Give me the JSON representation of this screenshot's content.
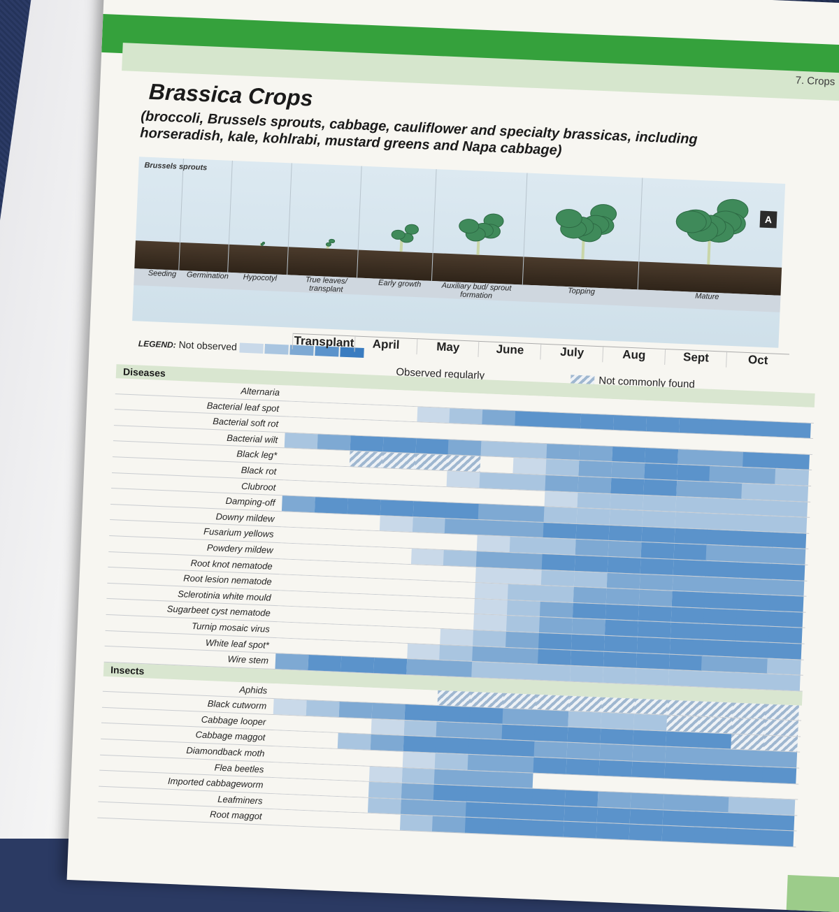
{
  "header": {
    "chapter": "7. Crops",
    "title": "Brassica Crops",
    "subtitle": "(broccoli, Brussels sprouts, cabbage, cauliflower and specialty brassicas, including horseradish, kale, kohlrabi, mustard greens and Napa cabbage)"
  },
  "illustration": {
    "label": "Brussels sprouts",
    "badge": "A",
    "stages": [
      "Seeding",
      "Germination",
      "Hypocotyl",
      "True leaves/ transplant",
      "Early growth",
      "Auxiliary bud/ sprout formation",
      "Topping",
      "Mature"
    ]
  },
  "legend": {
    "title": "LEGEND:",
    "not_observed": "Not observed",
    "observed_regularly": "Observed regularly",
    "not_commonly_found": "Not commonly found"
  },
  "months": [
    "Transplant",
    "April",
    "May",
    "June",
    "July",
    "Aug",
    "Sept",
    "Oct"
  ],
  "colors": {
    "l0": "#f7f6f1",
    "l1": "#c9d9e9",
    "l2": "#a9c5e0",
    "l3": "#7ea9d3",
    "l4": "#5b93cb",
    "l5": "#3a7cc0"
  },
  "sections": [
    {
      "name": "Diseases",
      "rows": [
        {
          "label": "Alternaria",
          "levels": [
            0,
            0,
            0,
            0,
            0,
            0,
            0,
            0,
            0,
            0,
            0,
            0,
            0,
            0,
            0,
            0
          ]
        },
        {
          "label": "Bacterial leaf spot",
          "levels": [
            0,
            0,
            0,
            0,
            1,
            2,
            3,
            4,
            4,
            4,
            4,
            4,
            4,
            4,
            4,
            4
          ]
        },
        {
          "label": "Bacterial soft rot",
          "levels": [
            0,
            0,
            0,
            0,
            0,
            0,
            0,
            0,
            0,
            0,
            0,
            0,
            0,
            0,
            0,
            0
          ]
        },
        {
          "label": "Bacterial wilt",
          "levels": [
            2,
            3,
            4,
            4,
            4,
            3,
            2,
            2,
            3,
            3,
            4,
            4,
            3,
            3,
            4,
            4
          ]
        },
        {
          "label": "Black leg*",
          "levels": [
            0,
            0,
            "h",
            "h",
            "h",
            "h",
            0,
            1,
            2,
            3,
            3,
            4,
            4,
            3,
            3,
            2
          ]
        },
        {
          "label": "Black rot",
          "levels": [
            0,
            0,
            0,
            0,
            0,
            1,
            2,
            2,
            3,
            3,
            4,
            4,
            3,
            3,
            2,
            2
          ]
        },
        {
          "label": "Clubroot",
          "levels": [
            0,
            0,
            0,
            0,
            0,
            0,
            0,
            0,
            1,
            2,
            2,
            2,
            2,
            2,
            2,
            2
          ]
        },
        {
          "label": "Damping-off",
          "levels": [
            3,
            4,
            4,
            4,
            4,
            4,
            3,
            3,
            2,
            2,
            2,
            2,
            2,
            2,
            2,
            2
          ]
        },
        {
          "label": "Downy mildew",
          "levels": [
            0,
            0,
            0,
            1,
            2,
            3,
            3,
            3,
            4,
            4,
            4,
            4,
            4,
            4,
            4,
            4
          ]
        },
        {
          "label": "Fusarium yellows",
          "levels": [
            0,
            0,
            0,
            0,
            0,
            0,
            1,
            2,
            2,
            3,
            3,
            4,
            4,
            3,
            3,
            3
          ]
        },
        {
          "label": "Powdery mildew",
          "levels": [
            0,
            0,
            0,
            0,
            1,
            2,
            3,
            3,
            4,
            4,
            4,
            4,
            4,
            4,
            4,
            4
          ]
        },
        {
          "label": "Root knot nematode",
          "levels": [
            0,
            0,
            0,
            0,
            0,
            0,
            1,
            1,
            2,
            2,
            3,
            3,
            3,
            3,
            3,
            3
          ]
        },
        {
          "label": "Root lesion nematode",
          "levels": [
            0,
            0,
            0,
            0,
            0,
            0,
            1,
            2,
            2,
            3,
            3,
            3,
            4,
            4,
            4,
            4
          ]
        },
        {
          "label": "Sclerotinia white mould",
          "levels": [
            0,
            0,
            0,
            0,
            0,
            0,
            1,
            2,
            3,
            4,
            4,
            4,
            4,
            4,
            4,
            4
          ]
        },
        {
          "label": "Sugarbeet cyst nematode",
          "levels": [
            0,
            0,
            0,
            0,
            0,
            0,
            1,
            2,
            3,
            3,
            4,
            4,
            4,
            4,
            4,
            4
          ]
        },
        {
          "label": "Turnip mosaic virus",
          "levels": [
            0,
            0,
            0,
            0,
            0,
            1,
            2,
            3,
            4,
            4,
            4,
            4,
            4,
            4,
            4,
            4
          ]
        },
        {
          "label": "White leaf spot*",
          "levels": [
            0,
            0,
            0,
            0,
            1,
            2,
            3,
            3,
            4,
            4,
            4,
            4,
            4,
            3,
            3,
            2
          ]
        },
        {
          "label": "Wire stem",
          "levels": [
            3,
            4,
            4,
            4,
            3,
            3,
            2,
            2,
            2,
            2,
            2,
            2,
            2,
            2,
            2,
            2
          ]
        }
      ]
    },
    {
      "name": "Insects",
      "rows": [
        {
          "label": "Aphids",
          "levels": [
            0,
            0,
            0,
            0,
            0,
            "h",
            "h",
            "h",
            "h",
            "h",
            "h",
            "h",
            "h",
            "h",
            "h",
            "h"
          ]
        },
        {
          "label": "Black cutworm",
          "levels": [
            1,
            2,
            3,
            3,
            4,
            4,
            4,
            3,
            3,
            2,
            2,
            2,
            "h",
            "h",
            "h",
            "h"
          ]
        },
        {
          "label": "Cabbage looper",
          "levels": [
            0,
            0,
            0,
            1,
            2,
            3,
            3,
            4,
            4,
            4,
            4,
            4,
            4,
            4,
            "h",
            "h"
          ]
        },
        {
          "label": "Cabbage maggot",
          "levels": [
            0,
            0,
            2,
            3,
            4,
            4,
            4,
            4,
            3,
            3,
            3,
            3,
            3,
            3,
            3,
            3
          ]
        },
        {
          "label": "Diamondback moth",
          "levels": [
            0,
            0,
            0,
            0,
            1,
            2,
            3,
            3,
            4,
            4,
            4,
            4,
            4,
            4,
            4,
            4
          ]
        },
        {
          "label": "Flea beetles",
          "levels": [
            0,
            0,
            0,
            1,
            2,
            3,
            3,
            3,
            0,
            0,
            0,
            0,
            0,
            0,
            0,
            0
          ]
        },
        {
          "label": "Imported cabbageworm",
          "levels": [
            0,
            0,
            0,
            2,
            3,
            4,
            4,
            4,
            4,
            4,
            3,
            3,
            3,
            3,
            2,
            2
          ]
        },
        {
          "label": "Leafminers",
          "levels": [
            0,
            0,
            0,
            2,
            3,
            3,
            4,
            4,
            4,
            4,
            4,
            4,
            4,
            4,
            4,
            4
          ]
        },
        {
          "label": "Root maggot",
          "levels": [
            0,
            0,
            0,
            0,
            2,
            3,
            4,
            4,
            4,
            4,
            4,
            4,
            4,
            4,
            4,
            4
          ]
        }
      ]
    }
  ]
}
